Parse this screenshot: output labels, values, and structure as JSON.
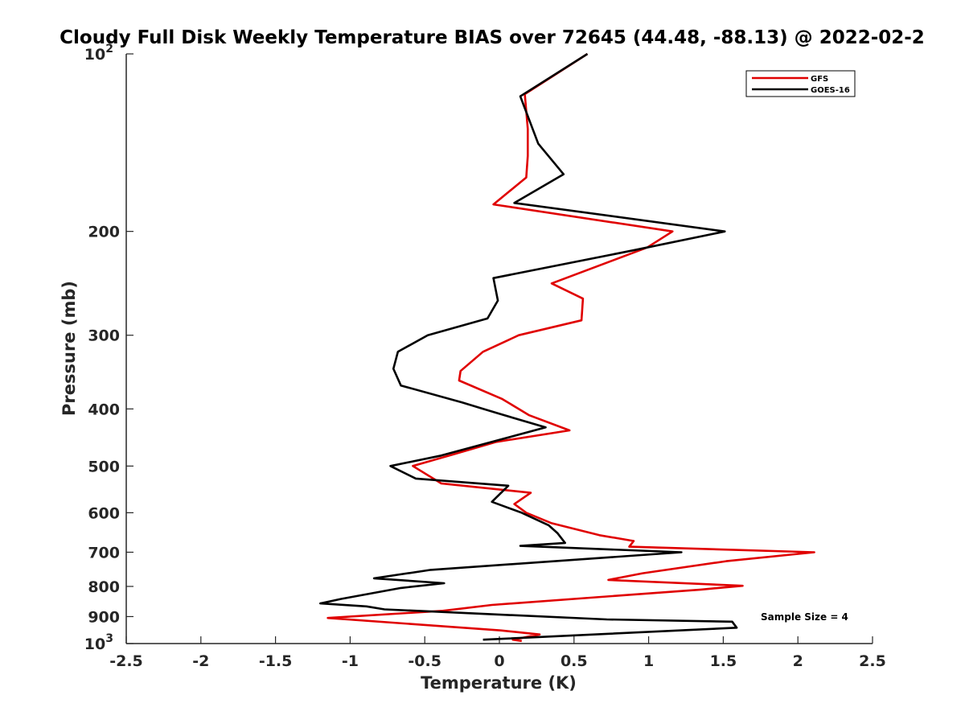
{
  "chart_data": {
    "type": "line",
    "title": "Cloudy Full Disk Weekly Temperature BIAS over 72645 (44.48, -88.13) @ 2022-02-2",
    "xlabel": "Temperature (K)",
    "ylabel": "Pressure (mb)",
    "xlim": [
      -2.5,
      2.5
    ],
    "ylim": [
      100,
      1000
    ],
    "y_scale": "log",
    "y_reversed": true,
    "grid": false,
    "legend_position": "top-right",
    "x_ticks": [
      "-2.5",
      "-2",
      "-1.5",
      "-1",
      "-0.5",
      "0",
      "0.5",
      "1",
      "1.5",
      "2",
      "2.5"
    ],
    "x_tick_values": [
      -2.5,
      -2,
      -1.5,
      -1,
      -0.5,
      0,
      0.5,
      1,
      1.5,
      2,
      2.5
    ],
    "y_ticks": [
      {
        "value": 100,
        "base": "10",
        "exp": "2"
      },
      {
        "value": 200,
        "label": "200"
      },
      {
        "value": 300,
        "label": "300"
      },
      {
        "value": 400,
        "label": "400"
      },
      {
        "value": 500,
        "label": "500"
      },
      {
        "value": 600,
        "label": "600"
      },
      {
        "value": 700,
        "label": "700"
      },
      {
        "value": 800,
        "label": "800"
      },
      {
        "value": 900,
        "label": "900"
      },
      {
        "value": 1000,
        "base": "10",
        "exp": "3"
      }
    ],
    "series": [
      {
        "name": "GFS",
        "color": "#e00000",
        "points": [
          [
            0.59,
            100
          ],
          [
            0.17,
            117
          ],
          [
            0.19,
            134
          ],
          [
            0.19,
            149
          ],
          [
            0.18,
            162
          ],
          [
            -0.04,
            180
          ],
          [
            1.16,
            200
          ],
          [
            0.99,
            213
          ],
          [
            0.35,
            245
          ],
          [
            0.56,
            260
          ],
          [
            0.55,
            283
          ],
          [
            0.13,
            300
          ],
          [
            -0.11,
            320
          ],
          [
            -0.26,
            345
          ],
          [
            -0.27,
            358
          ],
          [
            0.02,
            385
          ],
          [
            0.2,
            410
          ],
          [
            0.47,
            435
          ],
          [
            -0.02,
            455
          ],
          [
            -0.3,
            477
          ],
          [
            -0.58,
            500
          ],
          [
            -0.39,
            535
          ],
          [
            0.21,
            555
          ],
          [
            0.1,
            580
          ],
          [
            0.18,
            600
          ],
          [
            0.35,
            625
          ],
          [
            0.67,
            655
          ],
          [
            0.9,
            670
          ],
          [
            0.87,
            685
          ],
          [
            2.11,
            700
          ],
          [
            1.52,
            725
          ],
          [
            0.96,
            760
          ],
          [
            0.73,
            780
          ],
          [
            1.63,
            798
          ],
          [
            1.35,
            810
          ],
          [
            -0.05,
            860
          ],
          [
            -0.38,
            880
          ],
          [
            -1.15,
            905
          ],
          [
            0.01,
            950
          ],
          [
            0.27,
            965
          ],
          [
            0.09,
            985
          ],
          [
            0.15,
            990
          ]
        ]
      },
      {
        "name": "GOES-16",
        "color": "#000000",
        "points": [
          [
            0.59,
            100
          ],
          [
            0.14,
            118
          ],
          [
            0.26,
            142
          ],
          [
            0.43,
            160
          ],
          [
            0.1,
            179
          ],
          [
            1.51,
            200
          ],
          [
            0.91,
            215
          ],
          [
            -0.04,
            240
          ],
          [
            -0.01,
            262
          ],
          [
            -0.08,
            281
          ],
          [
            -0.48,
            300
          ],
          [
            -0.68,
            320
          ],
          [
            -0.71,
            342
          ],
          [
            -0.66,
            365
          ],
          [
            -0.25,
            390
          ],
          [
            -0.01,
            407
          ],
          [
            0.31,
            430
          ],
          [
            -0.39,
            480
          ],
          [
            -0.73,
            500
          ],
          [
            -0.56,
            525
          ],
          [
            0.06,
            540
          ],
          [
            -0.05,
            575
          ],
          [
            0.15,
            600
          ],
          [
            0.33,
            630
          ],
          [
            0.39,
            650
          ],
          [
            0.44,
            675
          ],
          [
            0.14,
            683
          ],
          [
            1.22,
            700
          ],
          [
            -0.46,
            750
          ],
          [
            -0.84,
            775
          ],
          [
            -0.37,
            790
          ],
          [
            -0.66,
            805
          ],
          [
            -1.06,
            840
          ],
          [
            -1.2,
            855
          ],
          [
            -0.89,
            865
          ],
          [
            -0.77,
            875
          ],
          [
            0.72,
            910
          ],
          [
            1.56,
            918
          ],
          [
            1.59,
            940
          ],
          [
            -0.11,
            985
          ]
        ]
      }
    ],
    "annotation": "Sample Size = 4"
  }
}
